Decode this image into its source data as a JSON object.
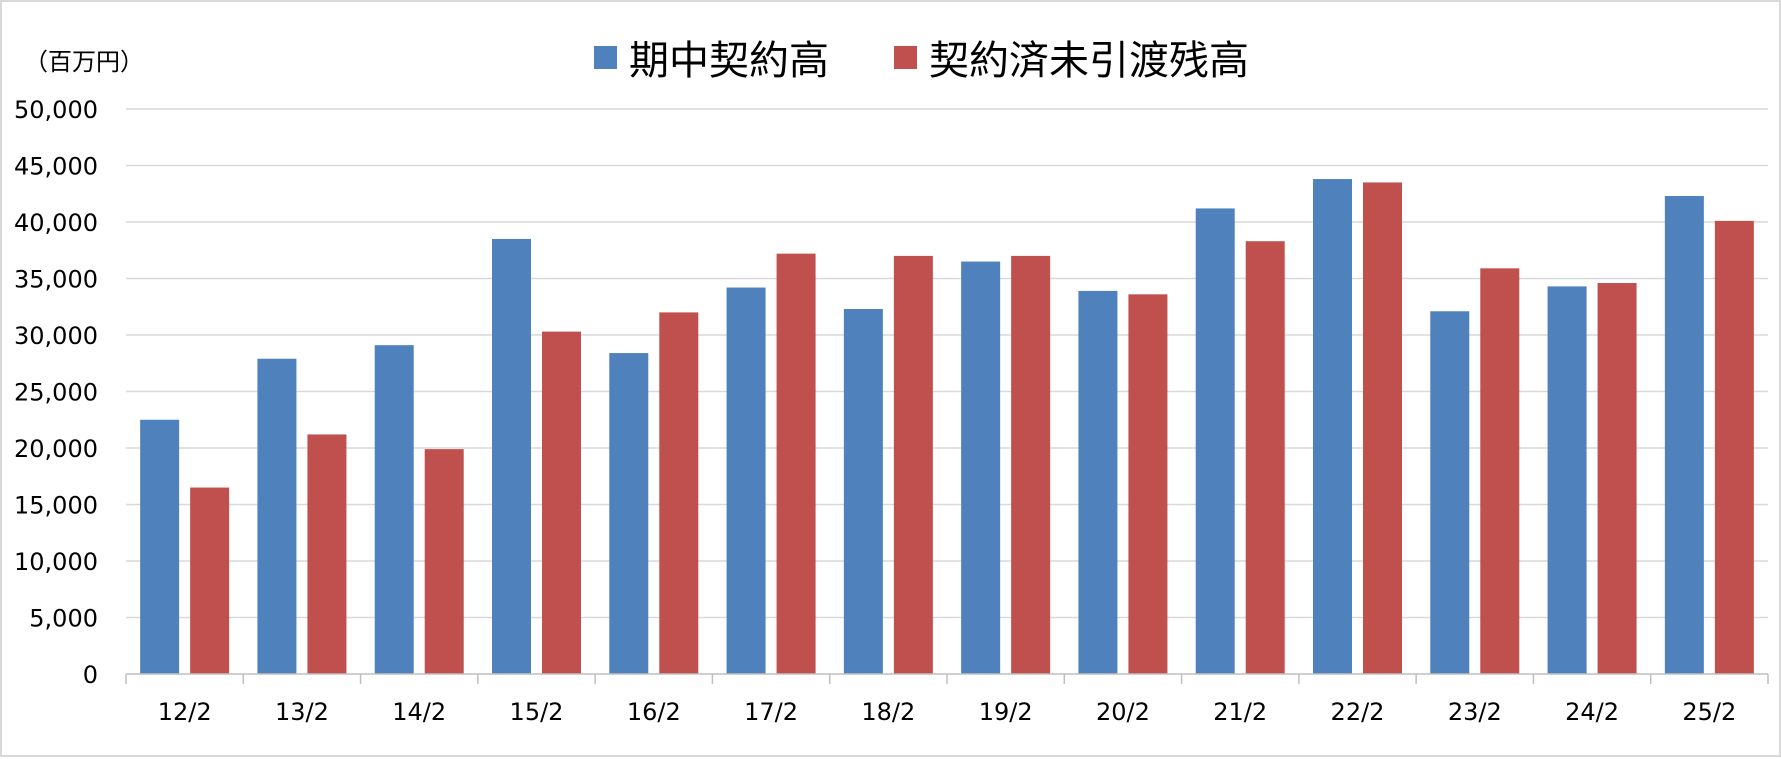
{
  "chart_data": {
    "type": "bar",
    "unit_label": "（百万円）",
    "categories": [
      "12/2",
      "13/2",
      "14/2",
      "15/2",
      "16/2",
      "17/2",
      "18/2",
      "19/2",
      "20/2",
      "21/2",
      "22/2",
      "23/2",
      "24/2",
      "25/2"
    ],
    "series": [
      {
        "name": "期中契約高",
        "color": "#4f81bd",
        "values": [
          22500,
          27900,
          29100,
          38500,
          28400,
          34200,
          32300,
          36500,
          33900,
          41200,
          43800,
          32100,
          34300,
          42300
        ]
      },
      {
        "name": "契約済未引渡残高",
        "color": "#c0504d",
        "values": [
          16500,
          21200,
          19900,
          30300,
          32000,
          37200,
          37000,
          37000,
          33600,
          38300,
          43500,
          35900,
          34600,
          40100
        ]
      }
    ],
    "ylim": [
      0,
      50000
    ],
    "yticks": [
      "0",
      "5,000",
      "10,000",
      "15,000",
      "20,000",
      "25,000",
      "30,000",
      "35,000",
      "40,000",
      "45,000",
      "50,000"
    ],
    "grid": true,
    "legend_position": "top-center"
  }
}
